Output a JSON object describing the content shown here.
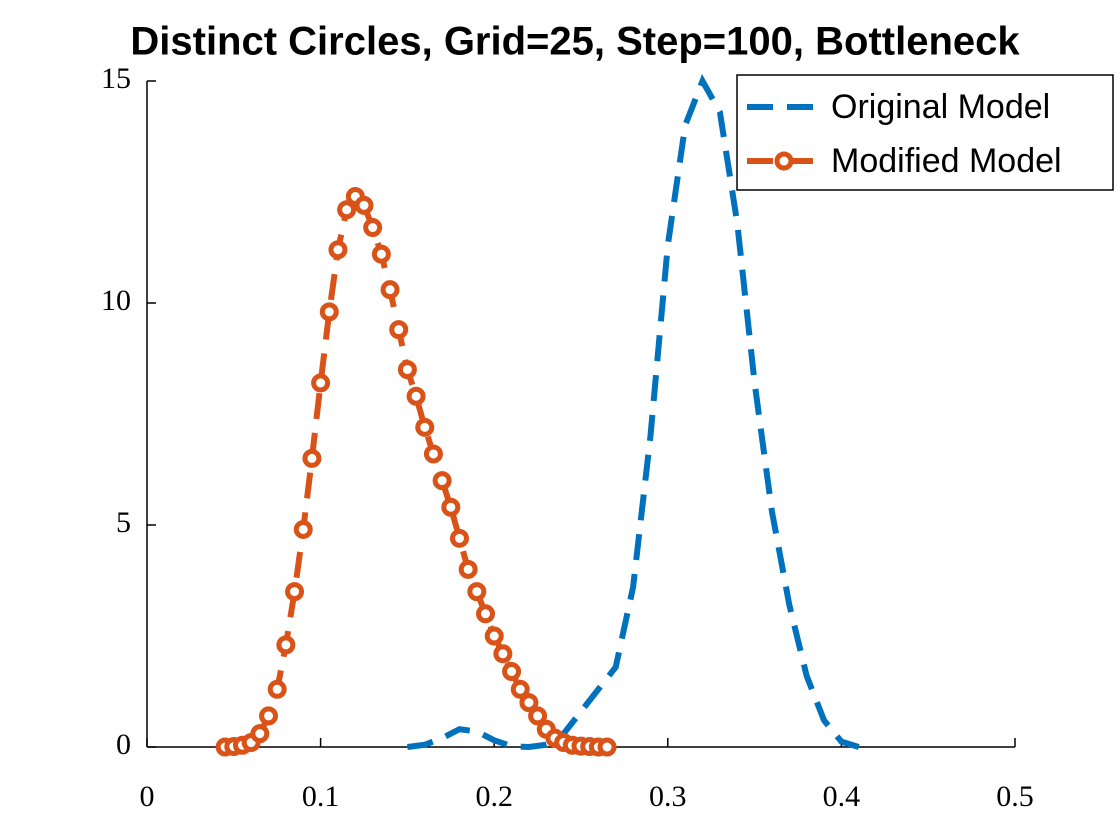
{
  "chart_data": {
    "type": "line",
    "title": "Distinct Circles, Grid=25, Step=100, Bottleneck",
    "xlim": [
      0,
      0.5
    ],
    "xticks": [
      0,
      0.1,
      0.2,
      0.3,
      0.4,
      0.5
    ],
    "ylim": [
      0,
      15
    ],
    "yticks": [
      0,
      5,
      10,
      15
    ],
    "grid": false,
    "legend": "northeast",
    "series": [
      {
        "name": "Original Model",
        "color": "#0072bd",
        "style": "dashed",
        "marker": "none",
        "x": [
          0.15,
          0.16,
          0.17,
          0.18,
          0.19,
          0.2,
          0.21,
          0.22,
          0.23,
          0.24,
          0.25,
          0.26,
          0.27,
          0.28,
          0.29,
          0.3,
          0.31,
          0.32,
          0.33,
          0.34,
          0.35,
          0.36,
          0.37,
          0.38,
          0.39,
          0.4,
          0.41
        ],
        "values": [
          0,
          0.05,
          0.2,
          0.4,
          0.35,
          0.15,
          0.02,
          0,
          0.05,
          0.3,
          0.8,
          1.3,
          1.8,
          3.6,
          7.0,
          11.3,
          14.0,
          15.0,
          14.3,
          11.8,
          8.2,
          5.3,
          3.2,
          1.6,
          0.6,
          0.12,
          0
        ]
      },
      {
        "name": "Modified Model",
        "color": "#d95319",
        "style": "dashed",
        "marker": "circle",
        "x": [
          0.045,
          0.05,
          0.055,
          0.06,
          0.065,
          0.07,
          0.075,
          0.08,
          0.085,
          0.09,
          0.095,
          0.1,
          0.105,
          0.11,
          0.115,
          0.12,
          0.125,
          0.13,
          0.135,
          0.14,
          0.145,
          0.15,
          0.155,
          0.16,
          0.165,
          0.17,
          0.175,
          0.18,
          0.185,
          0.19,
          0.195,
          0.2,
          0.205,
          0.21,
          0.215,
          0.22,
          0.225,
          0.23,
          0.235,
          0.24,
          0.245,
          0.25,
          0.255,
          0.26,
          0.265
        ],
        "values": [
          0,
          0.01,
          0.04,
          0.1,
          0.3,
          0.7,
          1.3,
          2.3,
          3.5,
          4.9,
          6.5,
          8.2,
          9.8,
          11.2,
          12.1,
          12.4,
          12.2,
          11.7,
          11.1,
          10.3,
          9.4,
          8.5,
          7.9,
          7.2,
          6.6,
          6.0,
          5.4,
          4.7,
          4.0,
          3.5,
          3.0,
          2.5,
          2.1,
          1.7,
          1.3,
          1.0,
          0.7,
          0.4,
          0.2,
          0.1,
          0.04,
          0.02,
          0.01,
          0,
          0
        ]
      }
    ]
  }
}
